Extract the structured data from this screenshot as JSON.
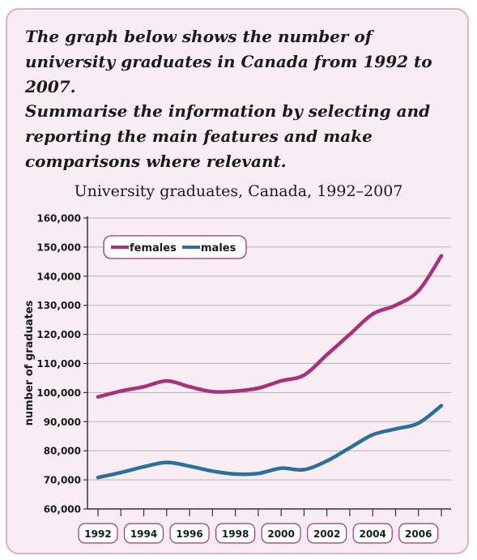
{
  "prompt": {
    "line1": "The graph below shows the number of university graduates in Canada from 1992 to 2007.",
    "line2": "Summarise the information by selecting and reporting the main features and make comparisons where relevant."
  },
  "colors": {
    "females": "#a8307c",
    "males": "#2a6fa0",
    "card_background": "#f7edf3",
    "card_border": "#d9b3c8"
  },
  "chart_data": {
    "type": "line",
    "title": "University graduates, Canada, 1992–2007",
    "xlabel": "",
    "ylabel": "number of graduates",
    "x": [
      1992,
      1993,
      1994,
      1995,
      1996,
      1997,
      1998,
      1999,
      2000,
      2001,
      2002,
      2003,
      2004,
      2005,
      2006,
      2007
    ],
    "xlim": [
      1992,
      2007
    ],
    "ylim": [
      60000,
      160000
    ],
    "yticks": [
      "60,000",
      "70,000",
      "80,000",
      "90,000",
      "100,000",
      "110,000",
      "120,000",
      "130,000",
      "140,000",
      "150,000",
      "160,000"
    ],
    "xtick_labels": [
      "1992",
      "1994",
      "1996",
      "1998",
      "2000",
      "2002",
      "2004",
      "2006"
    ],
    "series": [
      {
        "name": "females",
        "color": "#a8307c",
        "values": [
          98500,
          100500,
          102000,
          104000,
          102000,
          100300,
          100500,
          101500,
          104000,
          106000,
          113000,
          120000,
          127000,
          130000,
          135000,
          147000
        ]
      },
      {
        "name": "males",
        "color": "#2a6fa0",
        "values": [
          70800,
          72500,
          74500,
          76000,
          74700,
          73000,
          72000,
          72200,
          74000,
          73500,
          76500,
          81000,
          85500,
          87500,
          89500,
          95500
        ]
      }
    ],
    "grid": "horizontal",
    "legend_position": "top-left"
  }
}
